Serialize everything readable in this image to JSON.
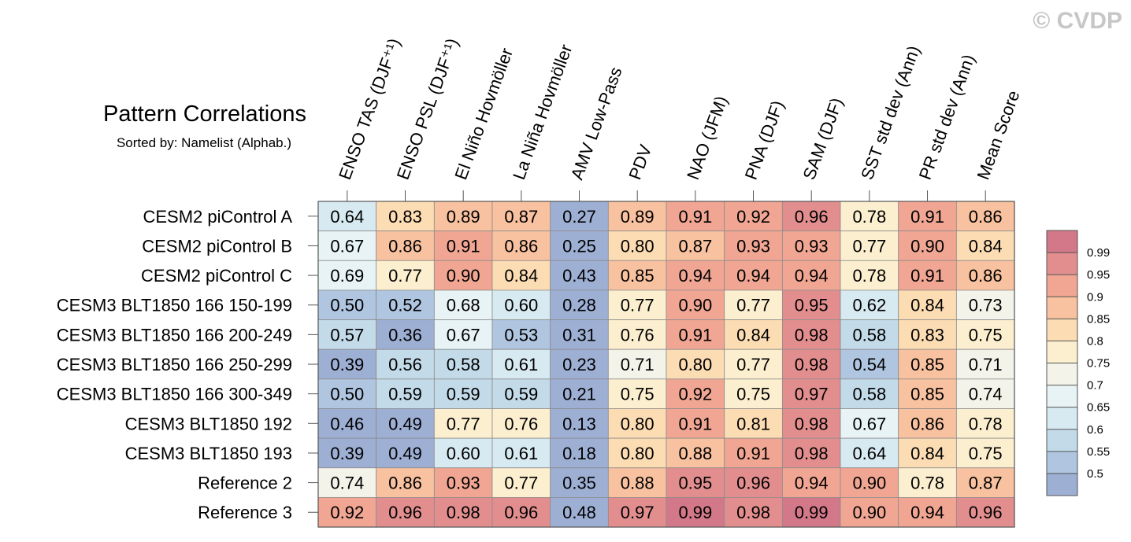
{
  "copyright": "© CVDP",
  "chart_data": {
    "type": "heatmap",
    "title": "Pattern Correlations",
    "subtitle": "Sorted by: Namelist (Alphab.)",
    "columns": [
      "ENSO TAS (DJF⁺¹)",
      "ENSO PSL (DJF⁺¹)",
      "El Niño Hovmöller",
      "La Niña Hovmöller",
      "AMV Low-Pass",
      "PDV",
      "NAO (JFM)",
      "PNA (DJF)",
      "SAM (DJF)",
      "SST std dev (Ann)",
      "PR std dev (Ann)",
      "Mean Score"
    ],
    "rows": [
      "CESM2 piControl A",
      "CESM2 piControl B",
      "CESM2 piControl C",
      "CESM3 BLT1850 166 150-199",
      "CESM3 BLT1850 166 200-249",
      "CESM3 BLT1850 166 250-299",
      "CESM3 BLT1850 166 300-349",
      "CESM3 BLT1850 192",
      "CESM3 BLT1850 193",
      "Reference 2",
      "Reference 3"
    ],
    "values": [
      [
        0.64,
        0.83,
        0.89,
        0.87,
        0.27,
        0.89,
        0.91,
        0.92,
        0.96,
        0.78,
        0.91,
        0.86
      ],
      [
        0.67,
        0.86,
        0.91,
        0.86,
        0.25,
        0.8,
        0.87,
        0.93,
        0.93,
        0.77,
        0.9,
        0.84
      ],
      [
        0.69,
        0.77,
        0.9,
        0.84,
        0.43,
        0.85,
        0.94,
        0.94,
        0.94,
        0.78,
        0.91,
        0.86
      ],
      [
        0.5,
        0.52,
        0.68,
        0.6,
        0.28,
        0.77,
        0.9,
        0.77,
        0.95,
        0.62,
        0.84,
        0.73
      ],
      [
        0.57,
        0.36,
        0.67,
        0.53,
        0.31,
        0.76,
        0.91,
        0.84,
        0.98,
        0.58,
        0.83,
        0.75
      ],
      [
        0.39,
        0.56,
        0.58,
        0.61,
        0.23,
        0.71,
        0.8,
        0.77,
        0.98,
        0.54,
        0.85,
        0.71
      ],
      [
        0.5,
        0.59,
        0.59,
        0.59,
        0.21,
        0.75,
        0.92,
        0.75,
        0.97,
        0.58,
        0.85,
        0.74
      ],
      [
        0.46,
        0.49,
        0.77,
        0.76,
        0.13,
        0.8,
        0.91,
        0.81,
        0.98,
        0.67,
        0.86,
        0.78
      ],
      [
        0.39,
        0.49,
        0.6,
        0.61,
        0.18,
        0.8,
        0.88,
        0.91,
        0.98,
        0.64,
        0.84,
        0.75
      ],
      [
        0.74,
        0.86,
        0.93,
        0.77,
        0.35,
        0.88,
        0.95,
        0.96,
        0.94,
        0.9,
        0.78,
        0.87
      ],
      [
        0.92,
        0.96,
        0.98,
        0.96,
        0.48,
        0.97,
        0.99,
        0.98,
        0.99,
        0.9,
        0.94,
        0.96
      ]
    ],
    "colorbar": {
      "levels": [
        "0.5",
        "0.55",
        "0.6",
        "0.65",
        "0.7",
        "0.75",
        "0.8",
        "0.85",
        "0.9",
        "0.95",
        "0.99"
      ],
      "thresholds": [
        0.5,
        0.55,
        0.6,
        0.65,
        0.7,
        0.75,
        0.8,
        0.85,
        0.9,
        0.95,
        0.99
      ],
      "colors": [
        "#9eafd4",
        "#afc5e0",
        "#c3dae9",
        "#d7e9f1",
        "#e8f3f6",
        "#f3f3ea",
        "#fcefcf",
        "#fcdcb3",
        "#f8c19f",
        "#f0a693",
        "#e28e8e",
        "#d27888"
      ]
    }
  }
}
